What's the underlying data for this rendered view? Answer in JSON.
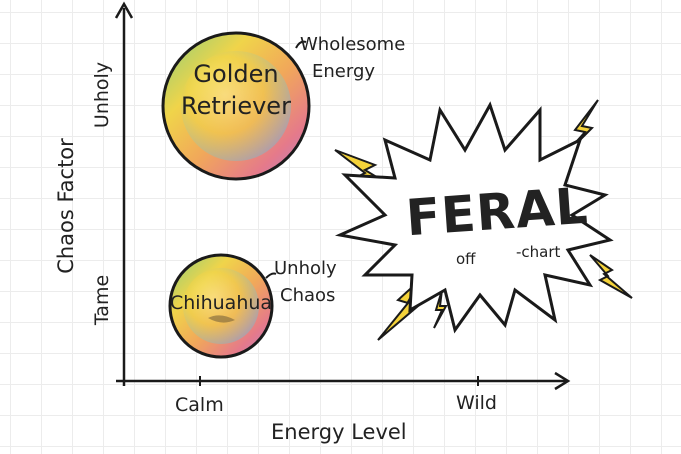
{
  "axes": {
    "y_title": "Chaos Factor",
    "y_high": "Unholy",
    "y_low": "Tame",
    "x_title": "Energy Level",
    "x_low": "Calm",
    "x_high": "Wild"
  },
  "bubbles": [
    {
      "name": "Golden Retriever",
      "line1": "Golden",
      "line2": "Retriever",
      "note1": "Wholesome",
      "note2": "Energy"
    },
    {
      "name": "Chihuahua",
      "line1": "Chihuahua",
      "note1": "Unholy",
      "note2": "Chaos"
    }
  ],
  "burst": {
    "title": "FERAL",
    "sub1": "off",
    "sub2": "-chart"
  },
  "colors": {
    "bolt": "#f5d33a",
    "ink": "#1a1a1a",
    "rainbow": [
      "#f0d44a",
      "#f1a85a",
      "#e57a8a",
      "#b07fd0",
      "#6fb0e0",
      "#8ccf7a"
    ]
  }
}
